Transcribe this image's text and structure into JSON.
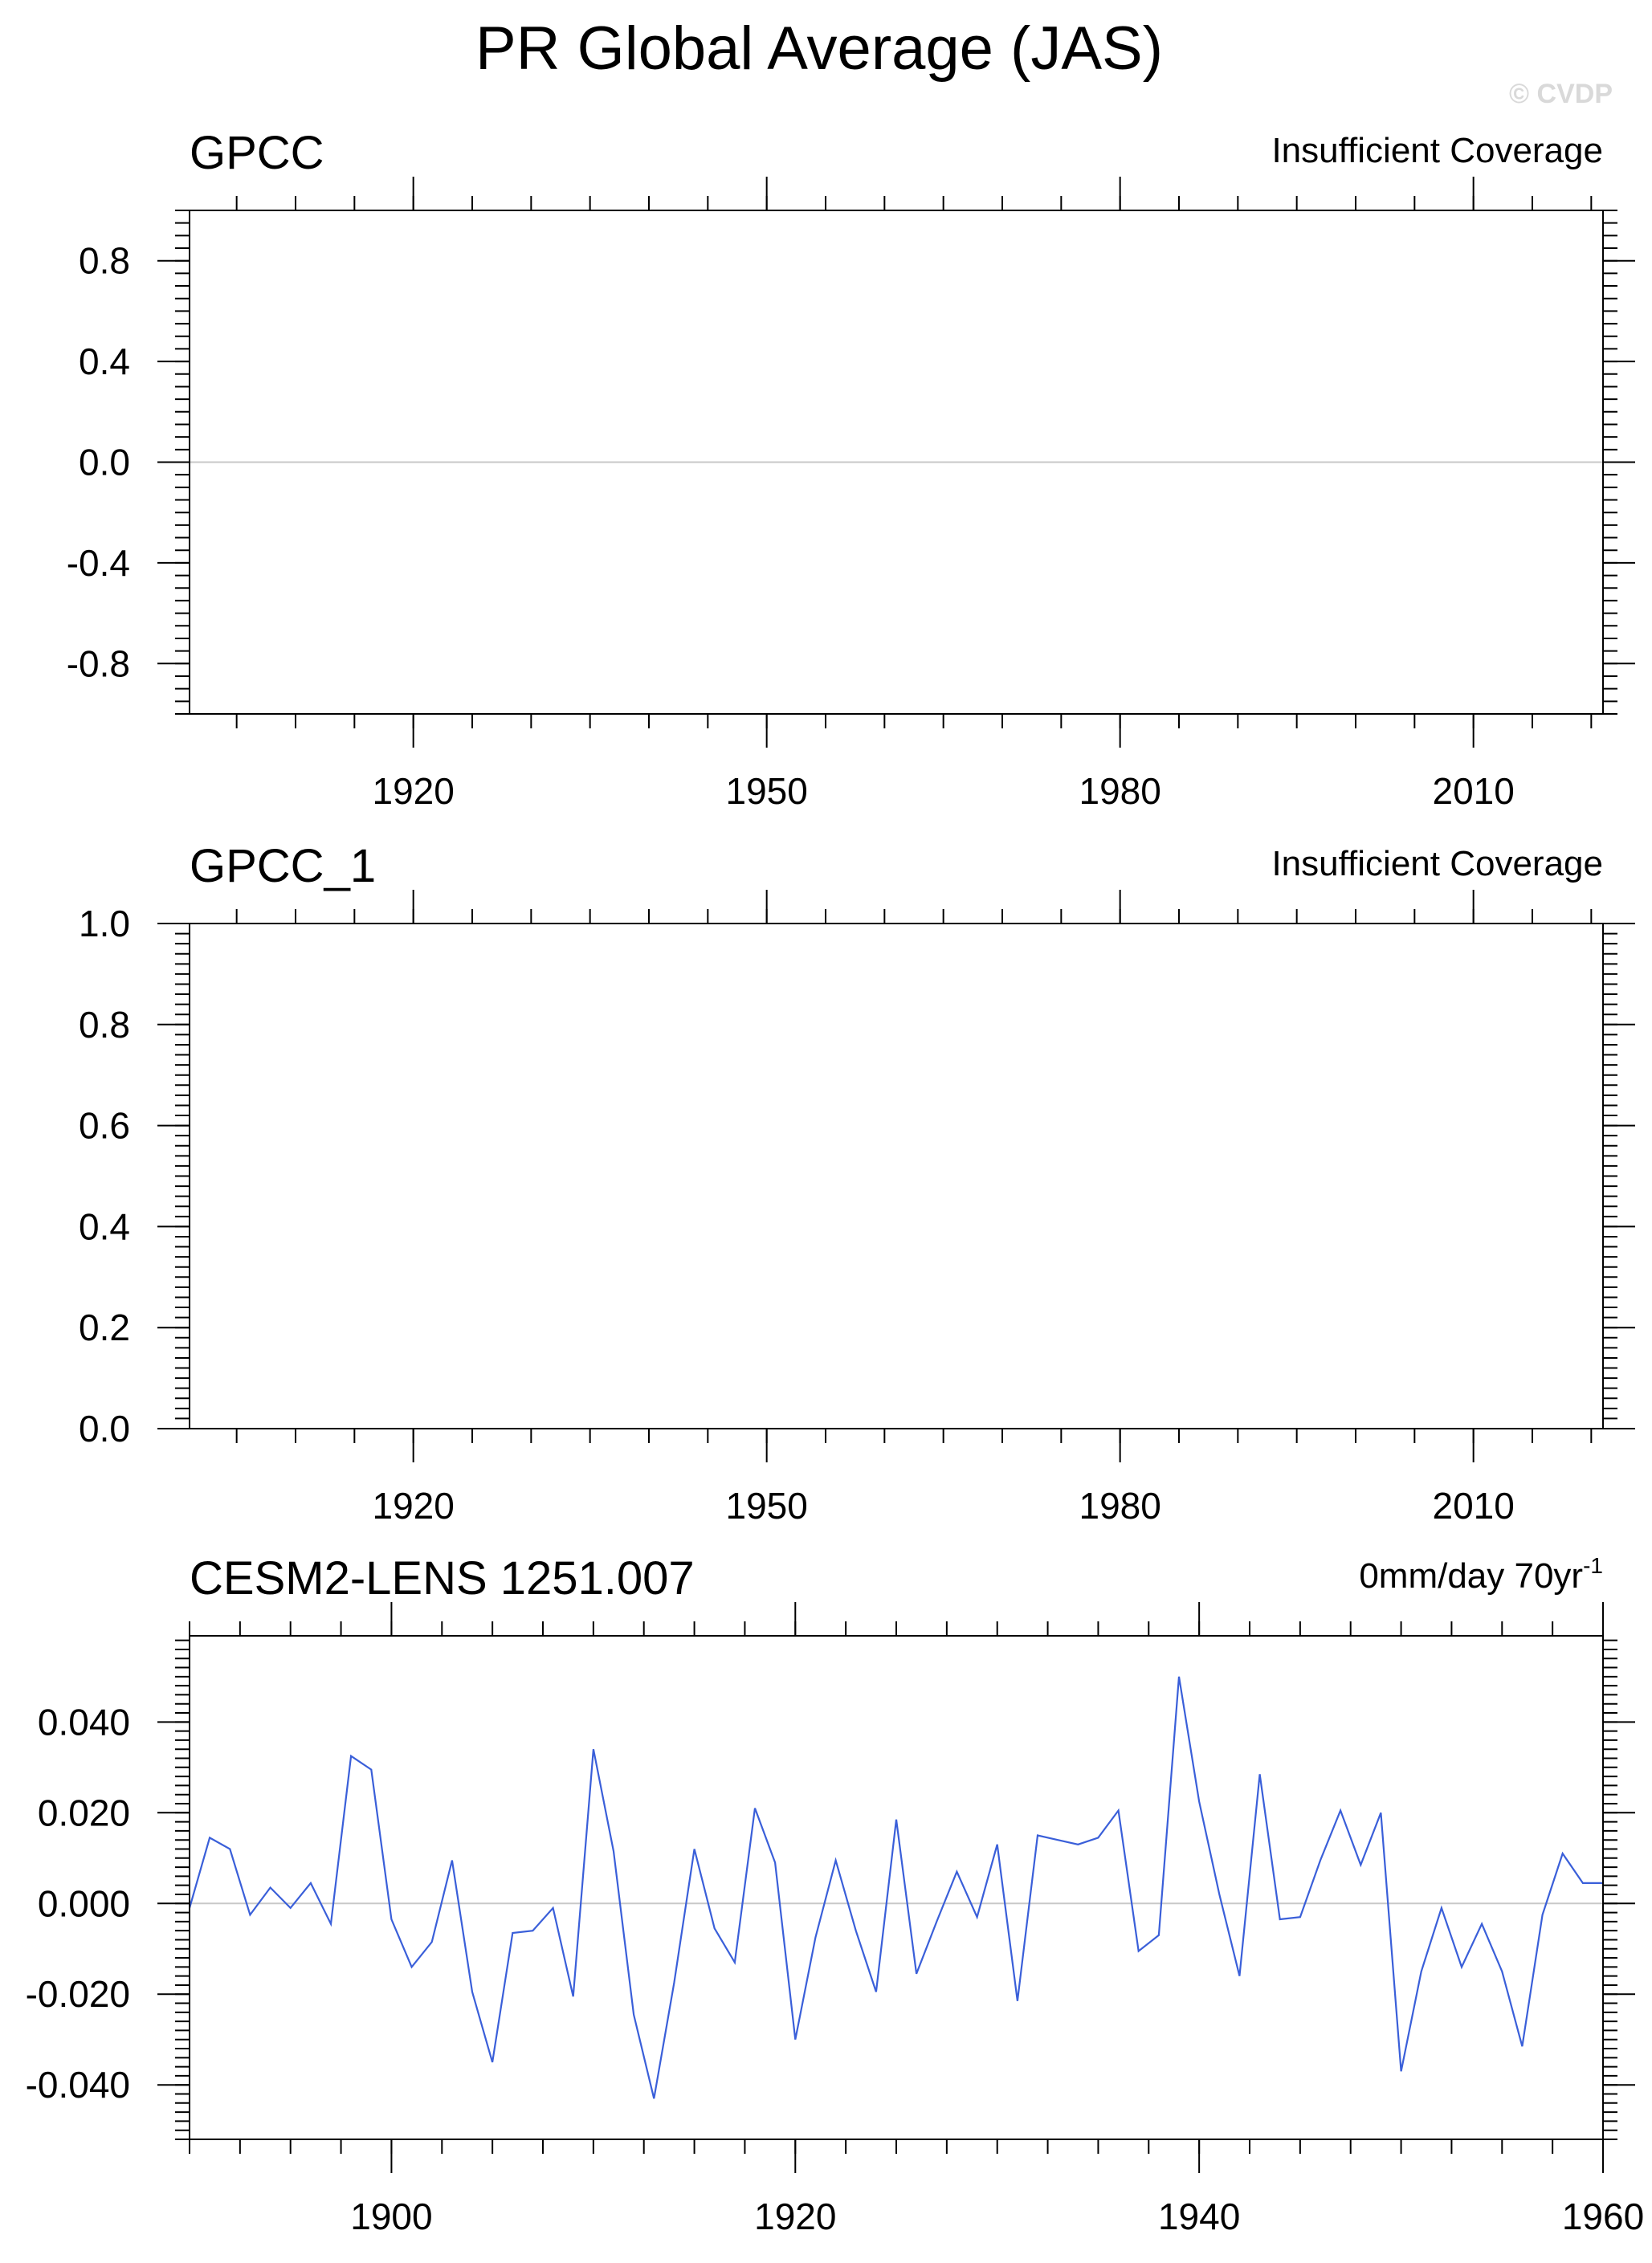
{
  "title": "PR Global Average (JAS)",
  "watermark": "© CVDP",
  "chart_data": [
    {
      "type": "line",
      "name": "GPCC",
      "right_label": "Insufficient Coverage",
      "xlim": [
        1901,
        2021
      ],
      "ylim": [
        -1.0,
        1.0
      ],
      "xticks": [
        1920,
        1950,
        1980,
        2010
      ],
      "yticks": [
        0.8,
        0.4,
        0.0,
        -0.4,
        -0.8
      ],
      "ytick_labels": [
        "0.8",
        "0.4",
        "0.0",
        "-0.4",
        "-0.8"
      ],
      "series": [],
      "reference_line": 0.0
    },
    {
      "type": "line",
      "name": "GPCC_1",
      "right_label": "Insufficient Coverage",
      "xlim": [
        1901,
        2021
      ],
      "ylim": [
        0.0,
        1.0
      ],
      "xticks": [
        1920,
        1950,
        1980,
        2010
      ],
      "yticks": [
        1.0,
        0.8,
        0.6,
        0.4,
        0.2,
        0.0
      ],
      "ytick_labels": [
        "1.0",
        "0.8",
        "0.6",
        "0.4",
        "0.2",
        "0.0"
      ],
      "series": []
    },
    {
      "type": "line",
      "name": "CESM2-LENS 1251.007",
      "right_label": "0mm/day 70yr",
      "right_label_sup": "-1",
      "xlim": [
        1890,
        1960
      ],
      "ylim": [
        -0.052,
        0.059
      ],
      "xticks": [
        1900,
        1920,
        1940,
        1960
      ],
      "yticks": [
        0.04,
        0.02,
        0.0,
        -0.02,
        -0.04
      ],
      "ytick_labels": [
        "0.040",
        "0.020",
        "0.000",
        "-0.020",
        "-0.040"
      ],
      "reference_line": 0.0,
      "line_color": "#3a5fd9",
      "x": [
        1890,
        1891,
        1892,
        1893,
        1894,
        1895,
        1896,
        1897,
        1898,
        1899,
        1900,
        1901,
        1902,
        1903,
        1904,
        1905,
        1906,
        1907,
        1908,
        1909,
        1910,
        1911,
        1912,
        1913,
        1914,
        1915,
        1916,
        1917,
        1918,
        1919,
        1920,
        1921,
        1922,
        1923,
        1924,
        1925,
        1926,
        1927,
        1928,
        1929,
        1930,
        1931,
        1932,
        1933,
        1934,
        1935,
        1936,
        1937,
        1938,
        1939,
        1940,
        1941,
        1942,
        1943,
        1944,
        1945,
        1946,
        1947,
        1948,
        1949,
        1950,
        1951,
        1952,
        1953,
        1954,
        1955,
        1956,
        1957,
        1958,
        1959,
        1960
      ],
      "values": [
        -0.001,
        0.0145,
        0.012,
        -0.0025,
        0.0035,
        -0.001,
        0.0045,
        -0.0045,
        0.0325,
        0.0295,
        -0.0035,
        -0.014,
        -0.0085,
        0.0095,
        -0.0195,
        -0.035,
        -0.0065,
        -0.006,
        -0.001,
        -0.0205,
        0.034,
        0.0115,
        -0.0245,
        -0.043,
        -0.0175,
        0.012,
        -0.0055,
        -0.013,
        0.021,
        0.009,
        -0.03,
        -0.0075,
        0.0095,
        -0.006,
        -0.0195,
        0.0185,
        -0.0155,
        -0.004,
        0.007,
        -0.003,
        0.013,
        -0.0215,
        0.015,
        0.014,
        0.013,
        0.0145,
        0.0205,
        -0.0105,
        -0.007,
        0.05,
        0.0225,
        0.002,
        -0.016,
        0.0285,
        -0.0035,
        -0.003,
        0.0095,
        0.0205,
        0.0085,
        0.02,
        -0.037,
        -0.015,
        -0.001,
        -0.014,
        -0.0045,
        -0.015,
        -0.0315,
        -0.0025,
        0.011,
        0.0045,
        0.0045
      ]
    }
  ]
}
